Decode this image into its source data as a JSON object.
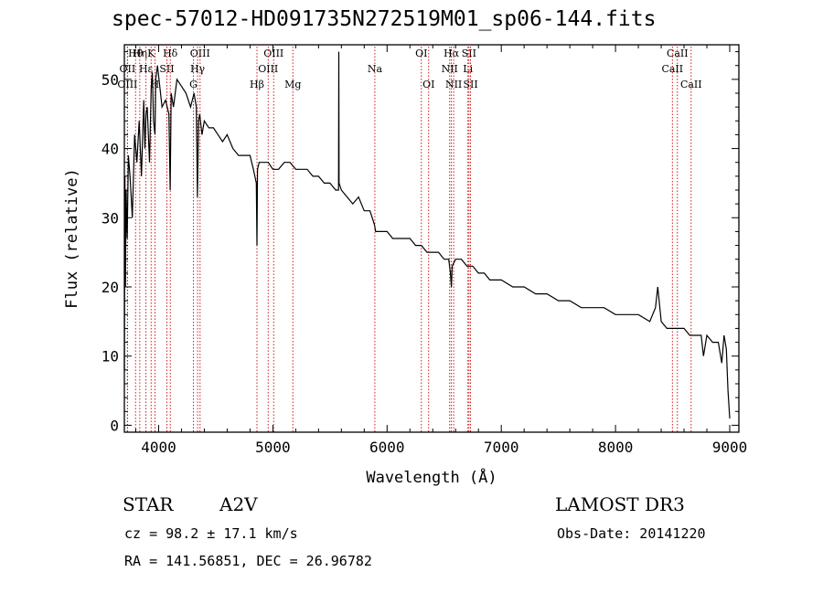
{
  "header": {
    "title": "spec-57012-HD091735N272519M01_sp06-144.fits"
  },
  "info": {
    "class_label": "STAR",
    "subclass": "A2V",
    "survey": "LAMOST DR3",
    "cz": "cz = 98.2 ± 17.1 km/s",
    "obs_date": "Obs-Date: 20141220",
    "radec": "RA = 141.56851, DEC =  26.96782"
  },
  "colors": {
    "line_marker": "#cc0000",
    "spectrum": "#000000"
  },
  "chart_data": {
    "type": "line",
    "title": "spec-57012-HD091735N272519M01_sp06-144.fits",
    "xlabel": "Wavelength (Å)",
    "ylabel": "Flux (relative)",
    "xlim": [
      3700,
      9080
    ],
    "ylim": [
      -1,
      55
    ],
    "xticks": [
      4000,
      5000,
      6000,
      7000,
      8000,
      9000
    ],
    "yticks": [
      0,
      10,
      20,
      30,
      40,
      50
    ],
    "grid": false,
    "series": [
      {
        "name": "spectrum",
        "x": [
          3700,
          3705,
          3710,
          3715,
          3725,
          3735,
          3750,
          3770,
          3790,
          3810,
          3830,
          3850,
          3870,
          3880,
          3890,
          3900,
          3920,
          3935,
          3945,
          3955,
          3968,
          3975,
          3990,
          4010,
          4030,
          4060,
          4090,
          4101,
          4110,
          4130,
          4160,
          4200,
          4240,
          4280,
          4310,
          4330,
          4340,
          4350,
          4360,
          4380,
          4400,
          4440,
          4480,
          4520,
          4560,
          4600,
          4650,
          4700,
          4750,
          4800,
          4830,
          4855,
          4861,
          4866,
          4880,
          4920,
          4960,
          5000,
          5050,
          5100,
          5150,
          5200,
          5250,
          5300,
          5350,
          5400,
          5450,
          5500,
          5550,
          5575,
          5577,
          5580,
          5600,
          5650,
          5700,
          5750,
          5800,
          5850,
          5890,
          5900,
          5950,
          6000,
          6050,
          6100,
          6150,
          6200,
          6250,
          6300,
          6350,
          6400,
          6450,
          6500,
          6540,
          6555,
          6563,
          6570,
          6600,
          6650,
          6700,
          6750,
          6800,
          6850,
          6900,
          6950,
          7000,
          7100,
          7200,
          7300,
          7400,
          7500,
          7600,
          7700,
          7800,
          7900,
          8000,
          8100,
          8200,
          8300,
          8350,
          8370,
          8400,
          8450,
          8500,
          8550,
          8600,
          8650,
          8700,
          8750,
          8770,
          8800,
          8850,
          8900,
          8930,
          8950,
          8970,
          8985,
          9000
        ],
        "y": [
          8,
          36,
          20,
          34,
          27,
          39,
          36,
          30,
          42,
          38,
          44,
          36,
          47,
          40,
          45,
          46,
          38,
          49,
          51,
          44,
          42,
          50,
          52,
          49,
          46,
          47,
          45,
          34,
          48,
          46,
          50,
          49,
          48,
          46,
          48,
          46,
          33,
          44,
          45,
          42,
          44,
          43,
          43,
          42,
          41,
          42,
          40,
          39,
          39,
          39,
          37,
          35,
          26,
          37,
          38,
          38,
          38,
          37,
          37,
          38,
          38,
          37,
          37,
          37,
          36,
          36,
          35,
          35,
          34,
          34,
          54,
          35,
          34,
          33,
          32,
          33,
          31,
          31,
          29,
          28,
          28,
          28,
          27,
          27,
          27,
          27,
          26,
          26,
          25,
          25,
          25,
          24,
          24,
          22,
          20,
          23,
          24,
          24,
          23,
          23,
          22,
          22,
          21,
          21,
          21,
          20,
          20,
          19,
          19,
          18,
          18,
          17,
          17,
          17,
          16,
          16,
          16,
          15,
          17,
          20,
          15,
          14,
          14,
          14,
          14,
          13,
          13,
          13,
          10,
          13,
          12,
          12,
          9,
          13,
          11,
          5,
          1
        ]
      }
    ],
    "annotation_lines": [
      {
        "label": "Hθ",
        "wavelength": 3798,
        "row": 1
      },
      {
        "label": "OII",
        "wavelength": 3727,
        "row": 2
      },
      {
        "label": "OIII",
        "wavelength": 3727,
        "row": 3
      },
      {
        "label": "Hη",
        "wavelength": 3835,
        "row": 1
      },
      {
        "label": "Hε",
        "wavelength": 3889,
        "row": 2
      },
      {
        "label": "K",
        "wavelength": 3934,
        "row": 1
      },
      {
        "label": "H",
        "wavelength": 3968,
        "row": 3
      },
      {
        "label": "SII",
        "wavelength": 4072,
        "row": 2
      },
      {
        "label": "Hδ",
        "wavelength": 4102,
        "row": 1
      },
      {
        "label": "OIII",
        "wavelength": 4363,
        "row": 1
      },
      {
        "label": "Hγ",
        "wavelength": 4341,
        "row": 2
      },
      {
        "label": "G",
        "wavelength": 4305,
        "row": 3
      },
      {
        "label": "Hβ",
        "wavelength": 4861,
        "row": 3
      },
      {
        "label": "OIII",
        "wavelength": 5007,
        "row": 1
      },
      {
        "label": "OIII",
        "wavelength": 4959,
        "row": 2
      },
      {
        "label": "Mg",
        "wavelength": 5175,
        "row": 3
      },
      {
        "label": "Na",
        "wavelength": 5893,
        "row": 2
      },
      {
        "label": "OI",
        "wavelength": 6300,
        "row": 1
      },
      {
        "label": "OI",
        "wavelength": 6364,
        "row": 3
      },
      {
        "label": "Hα",
        "wavelength": 6563,
        "row": 1
      },
      {
        "label": "SII",
        "wavelength": 6717,
        "row": 1
      },
      {
        "label": "NII",
        "wavelength": 6548,
        "row": 2
      },
      {
        "label": "Li",
        "wavelength": 6708,
        "row": 2
      },
      {
        "label": "NII",
        "wavelength": 6583,
        "row": 3
      },
      {
        "label": "SII",
        "wavelength": 6731,
        "row": 3
      },
      {
        "label": "CaII",
        "wavelength": 8542,
        "row": 1
      },
      {
        "label": "CaII",
        "wavelength": 8498,
        "row": 2
      },
      {
        "label": "CaII",
        "wavelength": 8662,
        "row": 3
      }
    ]
  }
}
